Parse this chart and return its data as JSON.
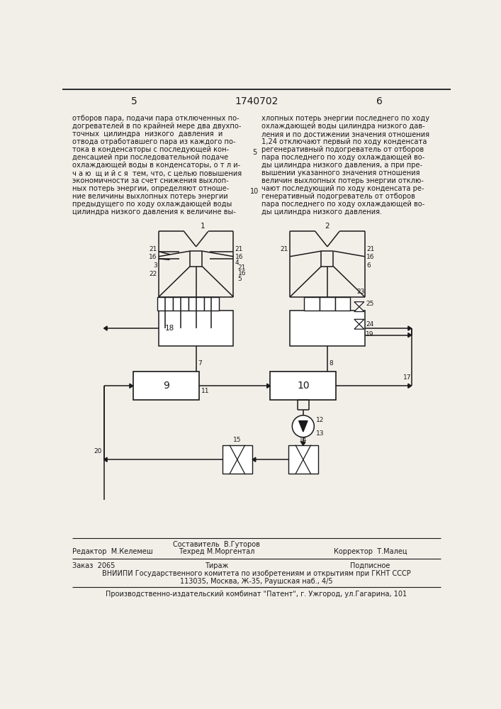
{
  "page_number_left": "5",
  "patent_number": "1740702",
  "page_number_right": "6",
  "text_left": "отборов пара, подачи пара отключенных по-\nдогревателей в по крайней мере два двухпо-\nточных  цилиндра  низкого  давления  и\nотвода отработавшего пара из каждого по-\nтока в конденсаторы с последующей кон-\nденсацией при последовательной подаче\nохлаждающей воды в конденсаторы, о т л и-\nч а ю  щ и й с я  тем, что, с целью повышения\nэкономичности за счет снижения выхлоп-\nных потерь энергии, определяют отноше-\nние величины выхлопных потерь энергии\nпредыдущего по ходу охлаждающей воды\nцилиндра низкого давления к величине вы-",
  "text_right": "хлопных потерь энергии последнего по ходу\nохлаждающей воды цилиндра низкого дав-\nления и по достижении значения отношения\n1,24 отключают первый по ходу конденсата\nрегенеративный подогреватель от отборов\nпара последнего по ходу охлаждающей во-\nды цилиндра низкого давления, а при пре-\nвышении указанного значения отношения\nвеличин выхлопных потерь энергии отклю-\nчают последующий по ходу конденсата ре-\nгенеративный подогреватель от отборов\nпара последнего по ходу охлаждающей во-\nды цилиндра низкого давления.",
  "line_number_5": "5",
  "line_number_10": "10",
  "editor_line": "Редактор  М.Келемеш",
  "composer_line": "Составитель  В.Гуторов",
  "techred_line": "Техред М.Моргентал",
  "corrector_line": "Корректор  Т.Малец",
  "order_line": "Заказ  2065",
  "tirazh_line": "Тираж",
  "podpisnoe_line": "Подписное",
  "vniiipi_line": "ВНИИПИ Государственного комитета по изобретениям и открытиям при ГКНТ СССР",
  "address_line": "113035, Москва, Ж-35, Раушская наб., 4/5",
  "factory_line": "Производственно-издательский комбинат \"Патент\", г. Ужгород, ул.Гагарина, 101",
  "bg_color": "#f2efe9",
  "text_color": "#1a1a1a",
  "line_color": "#1a1a1a"
}
